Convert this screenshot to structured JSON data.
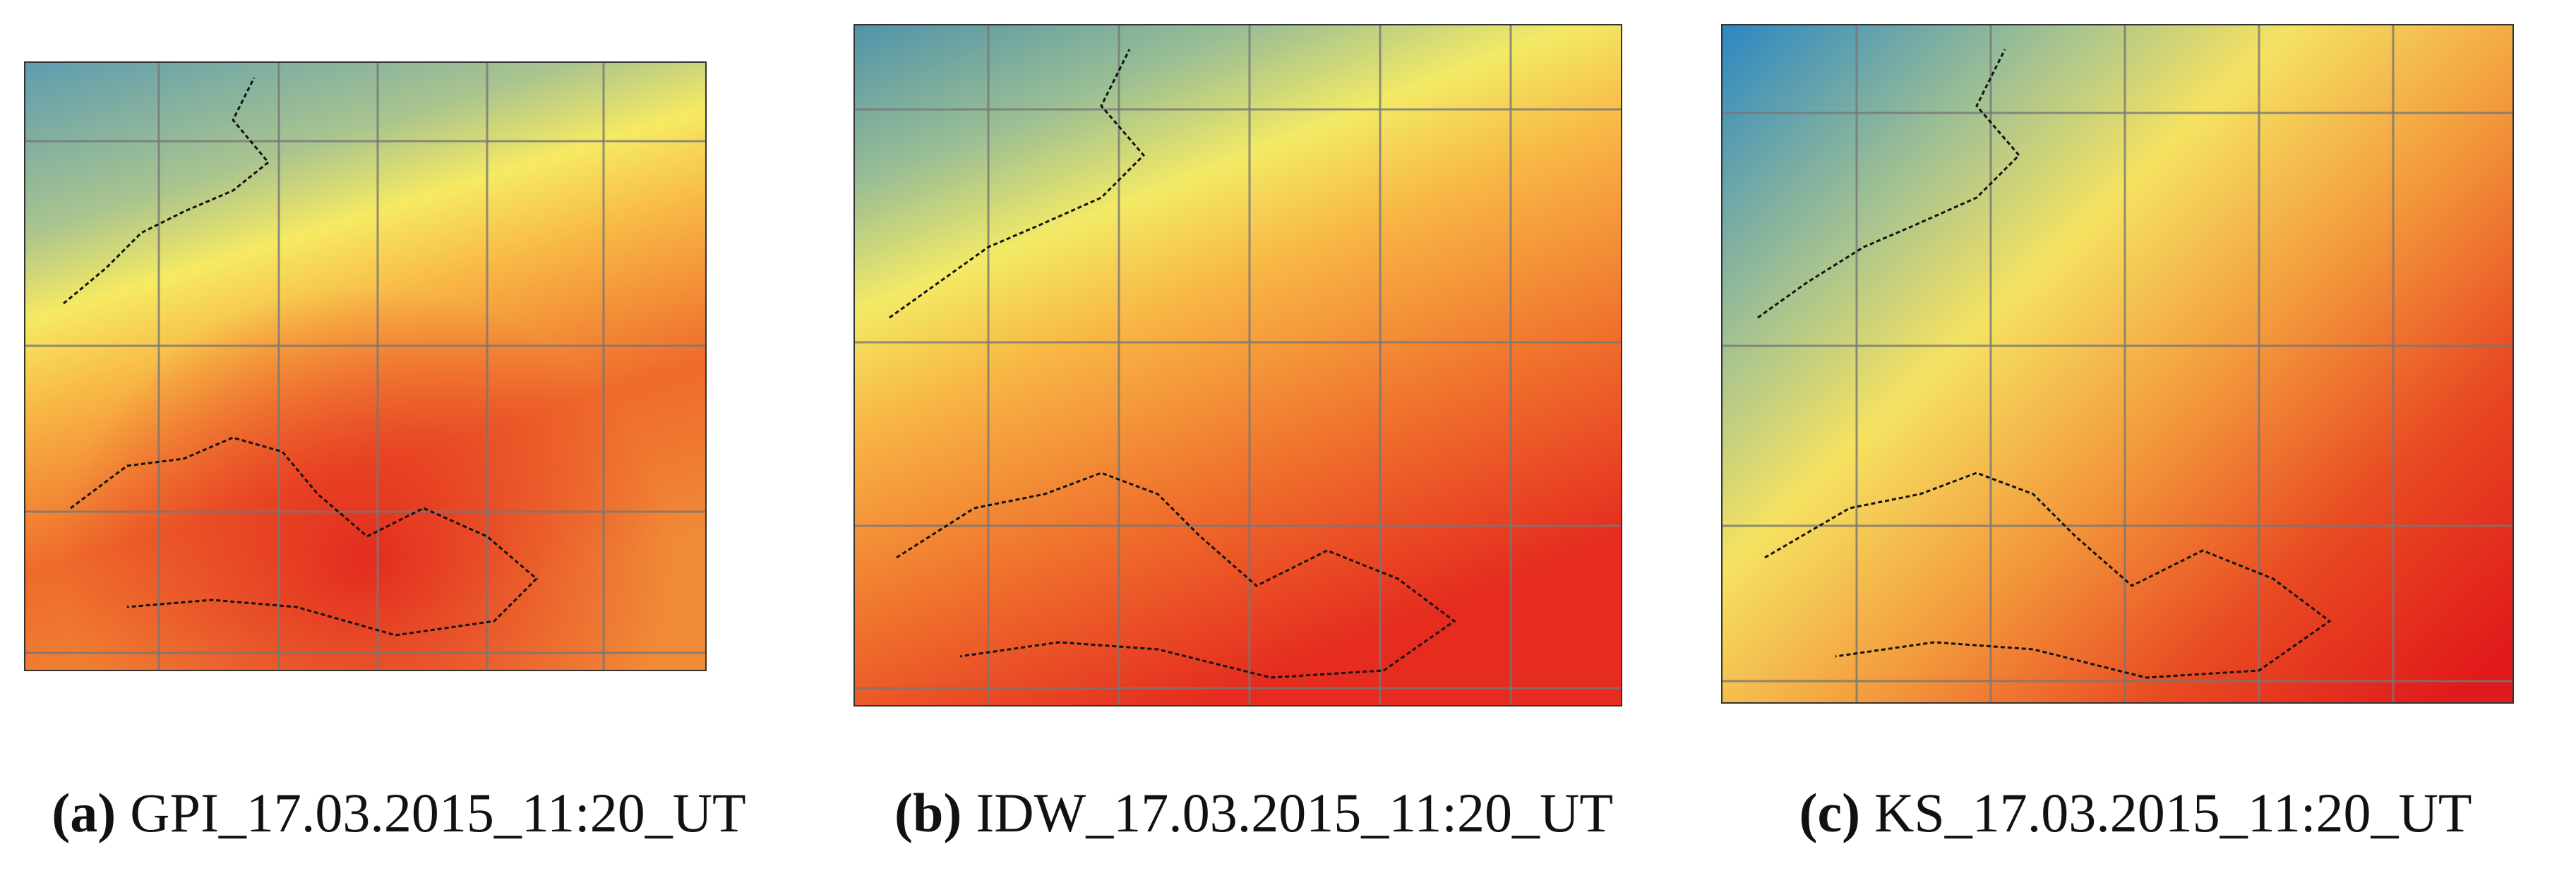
{
  "panels": [
    {
      "letter": "(a)",
      "caption": "GPI_17.03.2015_11:20_UT"
    },
    {
      "letter": "(b)",
      "caption": "IDW_17.03.2015_11:20_UT"
    },
    {
      "letter": "(c)",
      "caption": "KS_17.03.2015_11:20_UT"
    }
  ]
}
